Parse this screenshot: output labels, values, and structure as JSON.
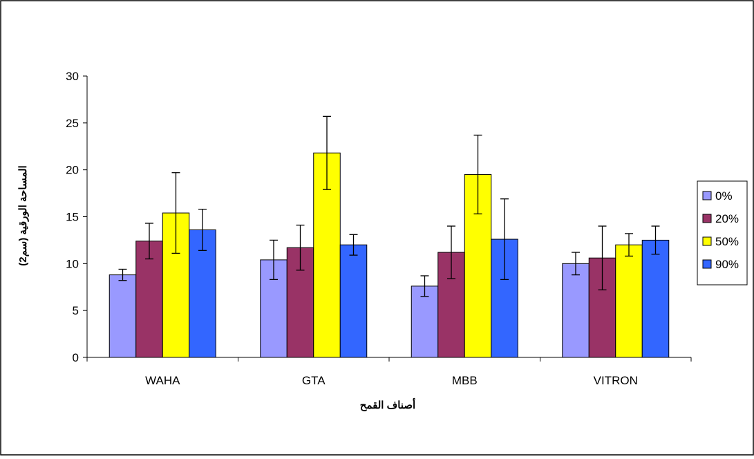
{
  "chart_data": {
    "type": "bar",
    "title": "",
    "xlabel": "أصناف القمح",
    "ylabel": "المساحة الورقية (سم2)",
    "ylim": [
      0,
      30
    ],
    "yticks": [
      "0",
      "5",
      "10",
      "15",
      "20",
      "25",
      "30"
    ],
    "grid": false,
    "legend_position": "right",
    "categories": [
      "WAHA",
      "GTA",
      "MBB",
      "VITRON"
    ],
    "series": [
      {
        "name": "0%",
        "color": "#9999ff",
        "values": [
          8.8,
          10.4,
          7.6,
          10.0
        ],
        "errors": [
          0.6,
          2.1,
          1.1,
          1.2
        ]
      },
      {
        "name": "20%",
        "color": "#993366",
        "values": [
          12.4,
          11.7,
          11.2,
          10.6
        ],
        "errors": [
          1.9,
          2.4,
          2.8,
          3.4
        ]
      },
      {
        "name": "50%",
        "color": "#ffff00",
        "values": [
          15.4,
          21.8,
          19.5,
          12.0
        ],
        "errors": [
          4.3,
          3.9,
          4.2,
          1.2
        ]
      },
      {
        "name": "90%",
        "color": "#3366ff",
        "values": [
          13.6,
          12.0,
          12.6,
          12.5
        ],
        "errors": [
          2.2,
          1.1,
          4.3,
          1.5
        ]
      }
    ]
  }
}
